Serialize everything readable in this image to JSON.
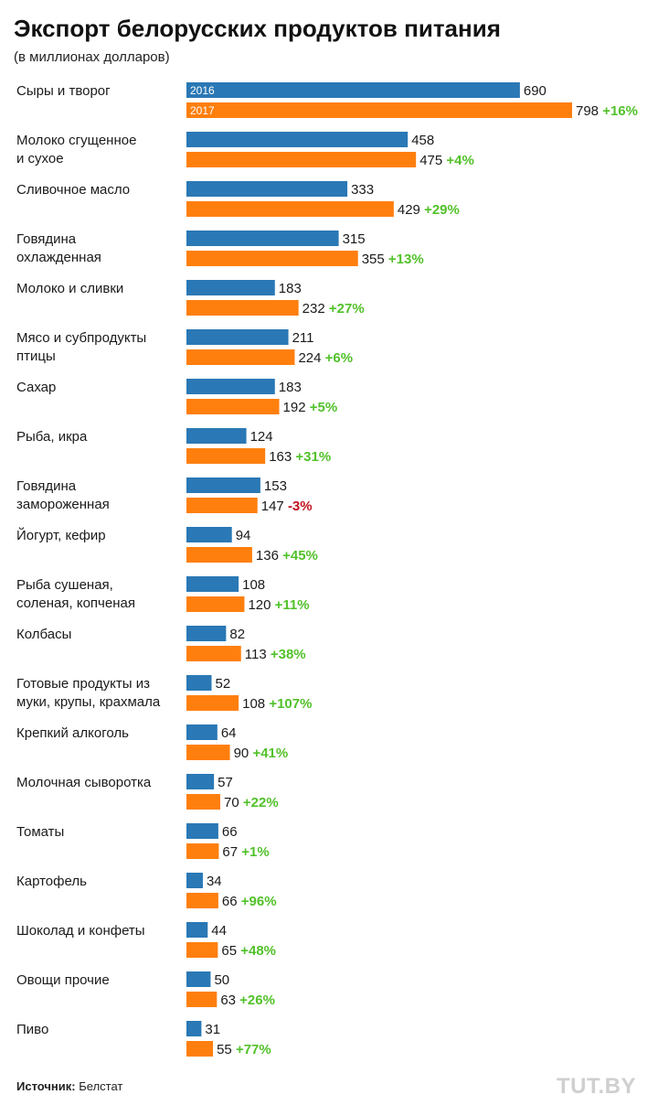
{
  "header": {
    "title": "Экспорт белорусских продуктов питания",
    "subtitle": "(в миллионах долларов)"
  },
  "footer": {
    "source_label": "Источник:",
    "source_value": "Белстат",
    "logo": "TUT.BY"
  },
  "colors": {
    "series_2016": "#2a78b5",
    "series_2017": "#ff7f0e",
    "positive_change": "#52c12a",
    "negative_change": "#c0141e",
    "text": "#1a1a1a"
  },
  "chart_data": {
    "type": "bar",
    "orientation": "horizontal",
    "title": "Экспорт белорусских продуктов питания",
    "subtitle": "(в миллионах долларов)",
    "legend_placement": "inside-first-bars",
    "grid": false,
    "xlim": [
      0,
      798
    ],
    "categories": [
      [
        "Сыры и творог"
      ],
      [
        "Молоко сгущенное",
        "и сухое"
      ],
      [
        "Сливочное масло"
      ],
      [
        "Говядина",
        "охлажденная"
      ],
      [
        "Молоко и сливки"
      ],
      [
        "Мясо и субпродукты",
        "птицы"
      ],
      [
        "Сахар"
      ],
      [
        "Рыба, икра"
      ],
      [
        "Говядина",
        "замороженная"
      ],
      [
        "Йогурт, кефир"
      ],
      [
        "Рыба сушеная,",
        "соленая, копченая"
      ],
      [
        "Колбасы"
      ],
      [
        "Готовые продукты из",
        "муки, крупы, крахмала"
      ],
      [
        "Крепкий алкоголь"
      ],
      [
        "Молочная сыворотка"
      ],
      [
        "Томаты"
      ],
      [
        "Картофель"
      ],
      [
        "Шоколад и конфеты"
      ],
      [
        "Овощи прочие"
      ],
      [
        "Пиво"
      ]
    ],
    "series": [
      {
        "name": "2016",
        "values": [
          690,
          458,
          333,
          315,
          183,
          211,
          183,
          124,
          153,
          94,
          108,
          82,
          52,
          64,
          57,
          66,
          34,
          44,
          50,
          31
        ]
      },
      {
        "name": "2017",
        "values": [
          798,
          475,
          429,
          355,
          232,
          224,
          192,
          163,
          147,
          136,
          120,
          113,
          108,
          90,
          70,
          67,
          66,
          65,
          63,
          55
        ]
      }
    ],
    "changes": [
      "+16%",
      "+4%",
      "+29%",
      "+13%",
      "+27%",
      "+6%",
      "+5%",
      "+31%",
      "-3%",
      "+45%",
      "+11%",
      "+38%",
      "+107%",
      "+41%",
      "+22%",
      "+1%",
      "+96%",
      "+48%",
      "+26%",
      "+77%"
    ]
  }
}
